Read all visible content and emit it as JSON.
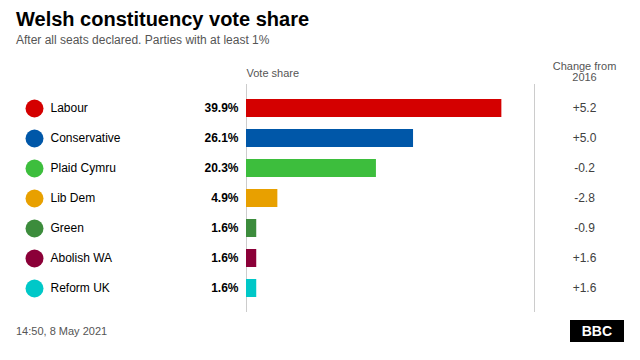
{
  "chart_data": {
    "type": "bar",
    "orientation": "horizontal",
    "title": "Welsh constituency vote share",
    "subtitle": "After all seats declared. Parties with at least 1%",
    "categories": [
      "Labour",
      "Conservative",
      "Plaid Cymru",
      "Lib Dem",
      "Green",
      "Abolish WA",
      "Reform UK"
    ],
    "values": [
      39.9,
      26.1,
      20.3,
      4.9,
      1.6,
      1.6,
      1.6
    ],
    "value_labels": [
      "39.9%",
      "26.1%",
      "20.3%",
      "4.9%",
      "1.6%",
      "1.6%",
      "1.6%"
    ],
    "data_labels": true,
    "colors": [
      "#d40000",
      "#0057a8",
      "#3dbe3d",
      "#e8a000",
      "#3c8c3c",
      "#8b0038",
      "#00c8c8"
    ],
    "value_header": "Vote share",
    "change_header": "Change from\n2016",
    "changes": [
      "+5.2",
      "+5.0",
      "-0.2",
      "-2.8",
      "-0.9",
      "+1.6",
      "+1.6"
    ],
    "caption": "14:50, 8 May 2021",
    "source": "BBC",
    "xlim": [
      0,
      45
    ],
    "tick_labels": false,
    "grid": false
  }
}
